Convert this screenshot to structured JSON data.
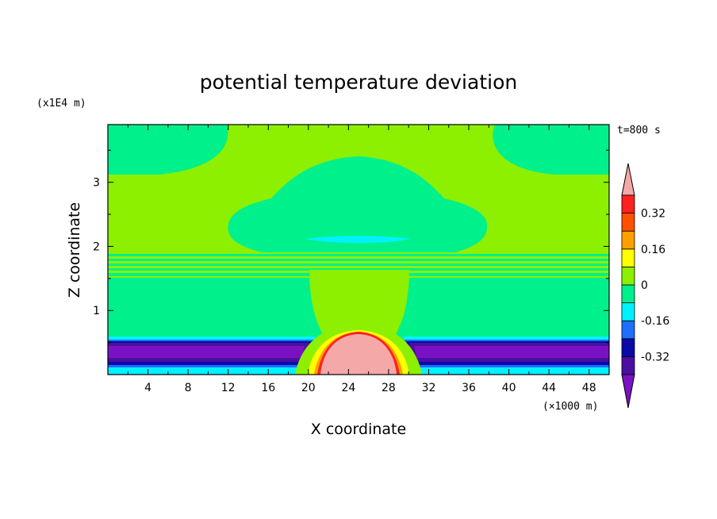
{
  "chart_data": {
    "type": "heatmap",
    "title": "potential temperature deviation",
    "time_label": "t=800 s",
    "xlabel": "X coordinate",
    "ylabel": "Z coordinate",
    "x_unit_label": "(×1000 m)",
    "y_unit_label": "(x1E4 m)",
    "xlim": [
      0,
      50
    ],
    "ylim": [
      0,
      0.39
    ],
    "x_ticks": [
      4,
      8,
      12,
      16,
      20,
      24,
      28,
      32,
      36,
      40,
      44,
      48
    ],
    "x_tick_labels": [
      "4",
      "8",
      "12",
      "16",
      "20",
      "24",
      "28",
      "32",
      "36",
      "40",
      "44",
      "48"
    ],
    "y_ticks": [
      0.1,
      0.2,
      0.3
    ],
    "y_tick_labels": [
      "1",
      "2",
      "3"
    ],
    "colorbar": {
      "levels": [
        -0.4,
        -0.32,
        -0.24,
        -0.16,
        -0.08,
        0,
        0.08,
        0.16,
        0.24,
        0.32,
        0.4
      ],
      "colors": [
        "#7a12c4",
        "#4a0fa0",
        "#0a0aa8",
        "#1e6eff",
        "#00f2ff",
        "#00f08c",
        "#8cf000",
        "#ffff00",
        "#ffa000",
        "#ff5000",
        "#ff2020",
        "#f4a8a8"
      ],
      "tick_labels": [
        "0.32",
        "0.16",
        "0",
        "-0.16",
        "-0.32"
      ],
      "tick_values": [
        0.32,
        0.16,
        0,
        -0.16,
        -0.32
      ],
      "extend": "both"
    }
  }
}
